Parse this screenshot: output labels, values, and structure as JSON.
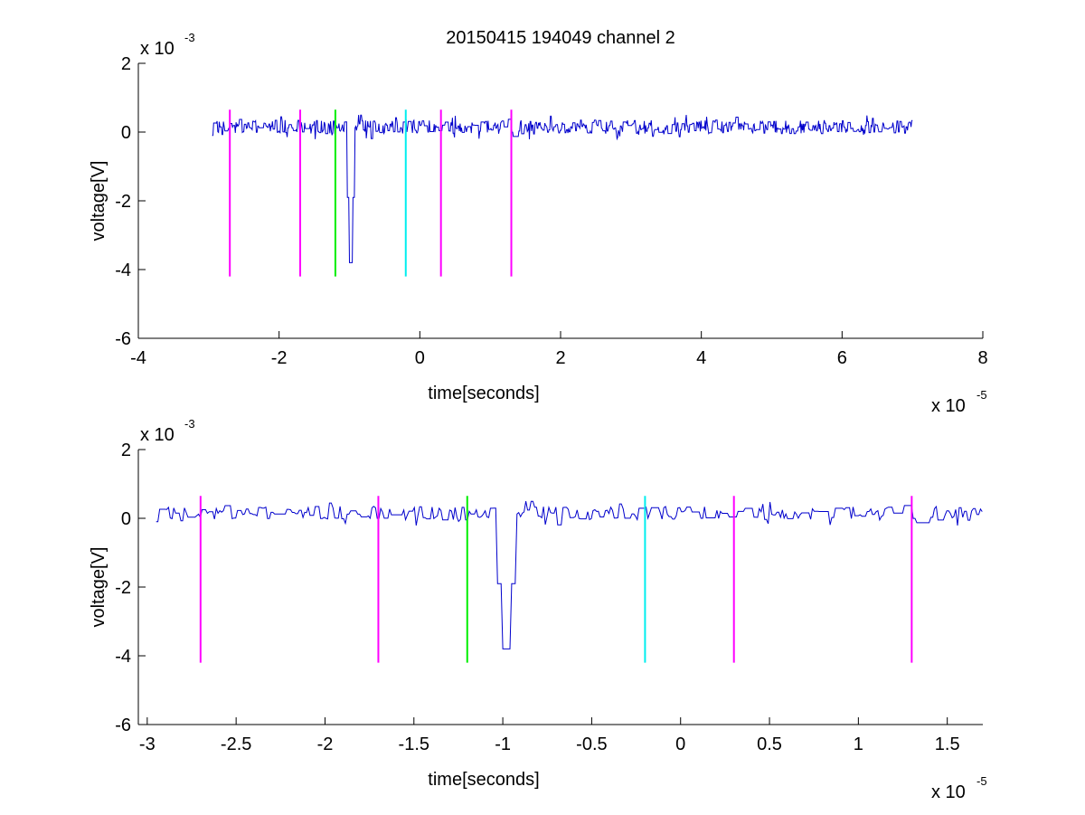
{
  "title": "20150415 194049 channel 2",
  "colors": {
    "signal": "#0000cc",
    "magenta": "#ff00ff",
    "green": "#00ee00",
    "cyan": "#00eeee"
  },
  "chart_data": [
    {
      "type": "line",
      "title": "20150415 194049 channel 2",
      "xlabel": "time[seconds]",
      "ylabel": "voltage[V]",
      "x_exponent_label": "x 10",
      "x_exponent": "-5",
      "y_exponent_label": "x 10",
      "y_exponent": "-3",
      "xlim": [
        -4e-05,
        8e-05
      ],
      "ylim": [
        -0.006,
        0.002
      ],
      "xticks": [
        -4e-05,
        -2e-05,
        0,
        2e-05,
        4e-05,
        6e-05,
        8e-05
      ],
      "xtick_labels": [
        "-4",
        "-2",
        "0",
        "2",
        "4",
        "6",
        "8"
      ],
      "yticks": [
        -0.006,
        -0.004,
        -0.002,
        0,
        0.002
      ],
      "ytick_labels": [
        "-6",
        "-4",
        "-2",
        "0",
        "2"
      ],
      "grid": false,
      "signal": {
        "x_start": -2.95e-05,
        "x_end": 7e-05,
        "baseline": 0.00015,
        "noise_amplitude": 0.0004,
        "spike": {
          "x": -9.8e-06,
          "min": -0.0038
        }
      },
      "markers": [
        {
          "x": -2.7e-05,
          "color": "magenta",
          "y_top": 0.00065,
          "y_bottom": -0.0042
        },
        {
          "x": -1.7e-05,
          "color": "magenta",
          "y_top": 0.00065,
          "y_bottom": -0.0042
        },
        {
          "x": -1.2e-05,
          "color": "green",
          "y_top": 0.00065,
          "y_bottom": -0.0042
        },
        {
          "x": -2e-06,
          "color": "cyan",
          "y_top": 0.00065,
          "y_bottom": -0.0042
        },
        {
          "x": 3e-06,
          "color": "magenta",
          "y_top": 0.00065,
          "y_bottom": -0.0042
        },
        {
          "x": 1.3e-05,
          "color": "magenta",
          "y_top": 0.00065,
          "y_bottom": -0.0042
        }
      ]
    },
    {
      "type": "line",
      "title": "",
      "xlabel": "time[seconds]",
      "ylabel": "voltage[V]",
      "x_exponent_label": "x 10",
      "x_exponent": "-5",
      "y_exponent_label": "x 10",
      "y_exponent": "-3",
      "xlim": [
        -3.05e-05,
        1.7e-05
      ],
      "ylim": [
        -0.006,
        0.002
      ],
      "xticks": [
        -3e-05,
        -2.5e-05,
        -2e-05,
        -1.5e-05,
        -1e-05,
        -5e-06,
        0,
        5e-06,
        1e-05,
        1.5e-05
      ],
      "xtick_labels": [
        "-3",
        "-2.5",
        "-2",
        "-1.5",
        "-1",
        "-0.5",
        "0",
        "0.5",
        "1",
        "1.5"
      ],
      "yticks": [
        -0.006,
        -0.004,
        -0.002,
        0,
        0.002
      ],
      "ytick_labels": [
        "-6",
        "-4",
        "-2",
        "0",
        "2"
      ],
      "grid": false,
      "signal": {
        "x_start": -2.95e-05,
        "x_end": 1.7e-05,
        "baseline": 0.00015,
        "noise_amplitude": 0.0004,
        "spike": {
          "x": -9.8e-06,
          "min": -0.0038
        }
      },
      "markers": [
        {
          "x": -2.7e-05,
          "color": "magenta",
          "y_top": 0.00065,
          "y_bottom": -0.0042
        },
        {
          "x": -1.7e-05,
          "color": "magenta",
          "y_top": 0.00065,
          "y_bottom": -0.0042
        },
        {
          "x": -1.2e-05,
          "color": "green",
          "y_top": 0.00065,
          "y_bottom": -0.0042
        },
        {
          "x": -2e-06,
          "color": "cyan",
          "y_top": 0.00065,
          "y_bottom": -0.0042
        },
        {
          "x": 3e-06,
          "color": "magenta",
          "y_top": 0.00065,
          "y_bottom": -0.0042
        },
        {
          "x": 1.3e-05,
          "color": "magenta",
          "y_top": 0.00065,
          "y_bottom": -0.0042
        }
      ]
    }
  ]
}
